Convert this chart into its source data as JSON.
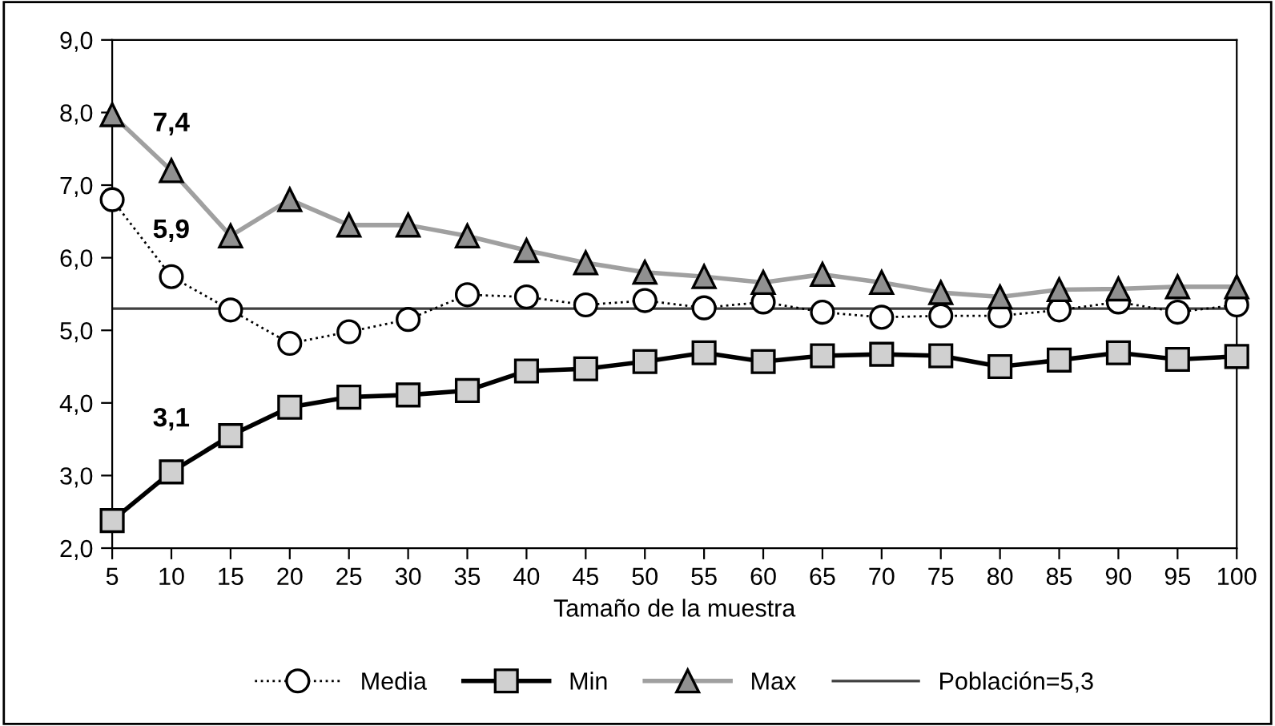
{
  "chart_data": {
    "type": "line",
    "xlabel": "Tamaño de la muestra",
    "x": [
      5,
      10,
      15,
      20,
      25,
      30,
      35,
      40,
      45,
      50,
      55,
      60,
      65,
      70,
      75,
      80,
      85,
      90,
      95,
      100
    ],
    "xlim": [
      5,
      100
    ],
    "xticks": [
      5,
      10,
      15,
      20,
      25,
      30,
      35,
      40,
      45,
      50,
      55,
      60,
      65,
      70,
      75,
      80,
      85,
      90,
      95,
      100
    ],
    "ylim": [
      2,
      9
    ],
    "yticks": [
      {
        "value": 2,
        "label": "2,0"
      },
      {
        "value": 3,
        "label": "3,0"
      },
      {
        "value": 4,
        "label": "4,0"
      },
      {
        "value": 5,
        "label": "5,0"
      },
      {
        "value": 6,
        "label": "6,0"
      },
      {
        "value": 7,
        "label": "7,0"
      },
      {
        "value": 8,
        "label": "8,0"
      },
      {
        "value": 9,
        "label": "9,0"
      }
    ],
    "series": [
      {
        "name": "Media",
        "color": "#000000",
        "marker": "circle",
        "line_style": "dotted",
        "values": [
          6.8,
          5.74,
          5.28,
          4.82,
          4.98,
          5.15,
          5.49,
          5.46,
          5.35,
          5.41,
          5.31,
          5.39,
          5.25,
          5.18,
          5.2,
          5.2,
          5.28,
          5.39,
          5.25,
          5.35
        ]
      },
      {
        "name": "Min",
        "color": "#000000",
        "marker": "square",
        "line_style": "solid",
        "values": [
          2.38,
          3.05,
          3.55,
          3.94,
          4.08,
          4.11,
          4.17,
          4.44,
          4.47,
          4.57,
          4.69,
          4.57,
          4.65,
          4.67,
          4.65,
          4.5,
          4.59,
          4.69,
          4.6,
          4.64
        ]
      },
      {
        "name": "Max",
        "color": "#a0a0a0",
        "marker": "triangle",
        "line_style": "solid",
        "values": [
          7.97,
          7.2,
          6.3,
          6.8,
          6.45,
          6.45,
          6.3,
          6.1,
          5.93,
          5.8,
          5.74,
          5.66,
          5.77,
          5.66,
          5.52,
          5.46,
          5.56,
          5.57,
          5.6,
          5.6
        ]
      }
    ],
    "ref_lines": [
      {
        "axis": "y",
        "value": 5.3,
        "label": "Población=5,3",
        "color": "#404040",
        "line_style": "solid"
      }
    ],
    "annotations": [
      "7,4",
      "5,9",
      "3,1"
    ],
    "legend": "bottom",
    "grid": false
  }
}
